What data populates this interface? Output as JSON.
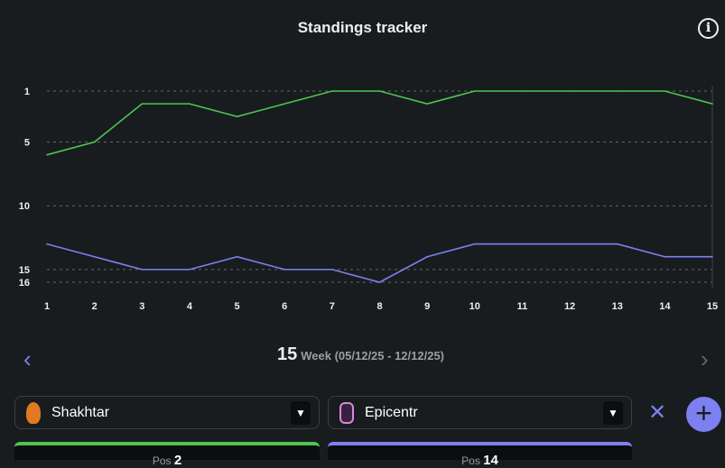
{
  "header": {
    "title": "Standings tracker",
    "info_icon": "info-icon"
  },
  "chart_data": {
    "type": "line",
    "title": "Standings tracker",
    "x": [
      1,
      2,
      3,
      4,
      5,
      6,
      7,
      8,
      9,
      10,
      11,
      12,
      13,
      14,
      15
    ],
    "y_ticks": [
      1,
      5,
      10,
      15,
      16
    ],
    "ylim": [
      1,
      16
    ],
    "y_inverted": true,
    "grid": true,
    "series": [
      {
        "name": "Shakhtar",
        "color": "#4cc552",
        "values": [
          6,
          5,
          2,
          2,
          3,
          2,
          1,
          1,
          2,
          1,
          1,
          1,
          1,
          1,
          2
        ]
      },
      {
        "name": "Epicentr",
        "color": "#7d80f0",
        "values": [
          13,
          14,
          15,
          15,
          14,
          15,
          15,
          16,
          14,
          13,
          13,
          13,
          13,
          14,
          14
        ]
      }
    ]
  },
  "week_nav": {
    "week": "15",
    "label": "Week (05/12/25 - 12/12/25)",
    "prev": "‹",
    "next": "›"
  },
  "teams": [
    {
      "name": "Shakhtar",
      "color": "#4cc552",
      "pos_label": "Pos",
      "pos": "2"
    },
    {
      "name": "Epicentr",
      "color": "#7d80f0",
      "pos_label": "Pos",
      "pos": "14"
    }
  ],
  "actions": {
    "remove": "✕",
    "add": "+"
  }
}
